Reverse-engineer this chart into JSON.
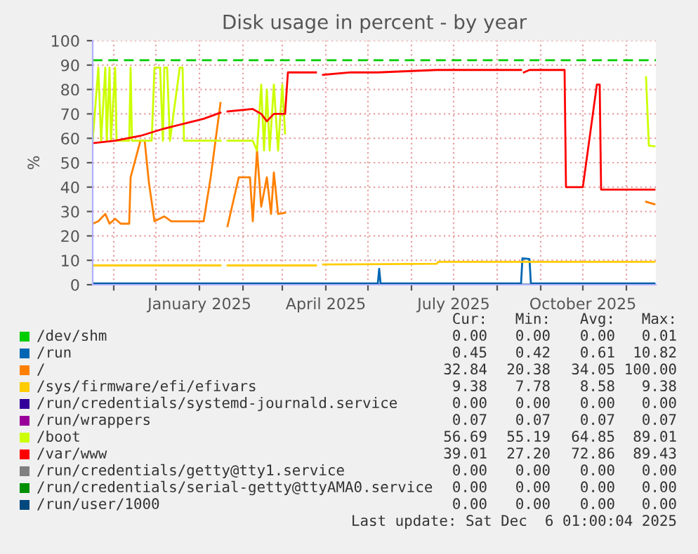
{
  "chart_data": {
    "type": "line",
    "title": "Disk usage in percent - by year",
    "ylabel": "%",
    "xlim": [
      "2024-10-17",
      "2025-11-22"
    ],
    "ylim": [
      0,
      100
    ],
    "yticks": [
      0,
      10,
      20,
      30,
      40,
      50,
      60,
      70,
      80,
      90,
      100
    ],
    "xticks": [
      {
        "value": "2024-11-01",
        "label": null
      },
      {
        "value": "2024-12-01",
        "label": null
      },
      {
        "value": "2025-01-01",
        "label": "January 2025"
      },
      {
        "value": "2025-02-01",
        "label": null
      },
      {
        "value": "2025-03-01",
        "label": null
      },
      {
        "value": "2025-04-01",
        "label": "April 2025"
      },
      {
        "value": "2025-05-01",
        "label": null
      },
      {
        "value": "2025-06-01",
        "label": null
      },
      {
        "value": "2025-07-01",
        "label": "July 2025"
      },
      {
        "value": "2025-08-01",
        "label": null
      },
      {
        "value": "2025-09-01",
        "label": null
      },
      {
        "value": "2025-10-01",
        "label": "October 2025"
      },
      {
        "value": "2025-11-01",
        "label": null
      }
    ],
    "grid": true,
    "legend": "bottom",
    "marker": "none",
    "line_style": "solid",
    "ref_lines": [
      {
        "axis": "y",
        "value": 92,
        "label": null,
        "color": "#00cc00",
        "line_style": "dashed"
      }
    ],
    "series": [
      {
        "name": "/dev/shm",
        "color": "#00cc00"
      },
      {
        "name": "/run",
        "color": "#0066b3",
        "x": [
          "2024-10-17",
          "2025-05-08",
          "2025-05-09",
          "2025-05-10",
          "2025-08-18",
          "2025-08-19",
          "2025-08-24",
          "2025-08-25",
          "2025-11-21"
        ],
        "values": [
          0.5,
          0.5,
          6.5,
          0.5,
          0.5,
          10.8,
          10.5,
          0.5,
          0.5
        ]
      },
      {
        "name": "/",
        "color": "#ff8000",
        "x": [
          "2024-10-17",
          "2024-10-21",
          "2024-10-26",
          "2024-10-29",
          "2024-11-02",
          "2024-11-06",
          "2024-11-12",
          "2024-11-13",
          "2024-11-20",
          "2024-11-23",
          "2024-11-26",
          "2024-11-30",
          "2024-12-07",
          "2024-12-12",
          "2025-01-04",
          "2025-01-09",
          "2025-01-16",
          "2025-01-18",
          "2025-01-21",
          "2025-01-29",
          "2025-02-06",
          "2025-02-08",
          "2025-02-11",
          "2025-02-14",
          "2025-02-18",
          "2025-02-21",
          "2025-02-23",
          "2025-02-26",
          "2025-03-03",
          "2025-03-04",
          "2025-11-15",
          "2025-11-21"
        ],
        "values": [
          25,
          26,
          29,
          25,
          27,
          25,
          25,
          44,
          59,
          59,
          42,
          26,
          28,
          26,
          26,
          44,
          74.5,
          null,
          24,
          44,
          44,
          26,
          55,
          32,
          44,
          29,
          46,
          29,
          29.5,
          null,
          34,
          33
        ]
      },
      {
        "name": "/sys/firmware/efi/efivars",
        "color": "#ffcc00",
        "x": [
          "2024-10-17",
          "2025-01-16",
          "2025-01-18",
          "2025-01-21",
          "2025-03-25",
          "2025-03-27",
          "2025-03-30",
          "2025-06-19",
          "2025-06-20",
          "2025-11-21"
        ],
        "values": [
          7.9,
          7.9,
          null,
          7.9,
          7.9,
          null,
          8.3,
          8.6,
          9.4,
          9.4
        ]
      },
      {
        "name": "/run/credentials/systemd-journald.service",
        "color": "#330099"
      },
      {
        "name": "/run/wrappers",
        "color": "#990099"
      },
      {
        "name": "/boot",
        "color": "#ccff00",
        "x": [
          "2024-10-17",
          "2024-10-21",
          "2024-10-23",
          "2024-10-26",
          "2024-10-27",
          "2024-10-29",
          "2024-10-30",
          "2024-11-02",
          "2024-11-03",
          "2024-11-12",
          "2024-11-13",
          "2024-11-14",
          "2024-11-28",
          "2024-11-30",
          "2024-12-04",
          "2024-12-06",
          "2024-12-07",
          "2024-12-09",
          "2024-12-11",
          "2024-12-18",
          "2024-12-20",
          "2024-12-21",
          "2025-01-16",
          "2025-01-18",
          "2025-01-21",
          "2025-02-08",
          "2025-02-11",
          "2025-02-14",
          "2025-02-16",
          "2025-02-18",
          "2025-02-20",
          "2025-02-23",
          "2025-02-26",
          "2025-03-01",
          "2025-03-03",
          "2025-03-04",
          "2025-11-15",
          "2025-11-17",
          "2025-11-21"
        ],
        "values": [
          59,
          89,
          59,
          89,
          59,
          89,
          59,
          89,
          59,
          59,
          89,
          59,
          59,
          89,
          89,
          59,
          89,
          89,
          59,
          89,
          89,
          59,
          59,
          null,
          59,
          59,
          55,
          82,
          55,
          80,
          55,
          82,
          55,
          82,
          62,
          null,
          85,
          57,
          56.7
        ]
      },
      {
        "name": "/var/www",
        "color": "#ff0000",
        "x": [
          "2024-10-17",
          "2024-11-02",
          "2024-11-20",
          "2024-12-07",
          "2024-12-21",
          "2025-01-04",
          "2025-01-16",
          "2025-01-18",
          "2025-01-21",
          "2025-02-08",
          "2025-02-14",
          "2025-02-18",
          "2025-02-23",
          "2025-03-03",
          "2025-03-05",
          "2025-03-25",
          "2025-03-27",
          "2025-03-30",
          "2025-04-19",
          "2025-05-08",
          "2025-06-19",
          "2025-08-18",
          "2025-08-19",
          "2025-08-20",
          "2025-08-24",
          "2025-09-18",
          "2025-09-19",
          "2025-10-01",
          "2025-10-11",
          "2025-10-13",
          "2025-10-14",
          "2025-11-21"
        ],
        "values": [
          58,
          59,
          61,
          64,
          66,
          68,
          70.5,
          null,
          71,
          72,
          70,
          67,
          70,
          70,
          87,
          87,
          null,
          86,
          87,
          87,
          88,
          88,
          null,
          87,
          88,
          88,
          40,
          40,
          82,
          82,
          39,
          39
        ]
      },
      {
        "name": "/run/credentials/getty@tty1.service",
        "color": "#808080"
      },
      {
        "name": "/run/credentials/serial-getty@ttyAMA0.service",
        "color": "#008f00"
      },
      {
        "name": "/run/user/1000",
        "color": "#00487d",
        "x": [
          "2024-10-17",
          "2025-11-21"
        ],
        "values": [
          0,
          0
        ]
      }
    ],
    "annotations": [
      "Cur:",
      "Min:",
      "Avg:",
      "Max:",
      "0.00",
      "0.00",
      "0.00",
      "0.01",
      "0.45",
      "0.42",
      "0.61",
      "10.82",
      "32.84",
      "20.38",
      "34.05",
      "100.00",
      "9.38",
      "7.78",
      "8.58",
      "9.38",
      "0.00",
      "0.00",
      "0.00",
      "0.00",
      "0.07",
      "0.07",
      "0.07",
      "0.07",
      "56.69",
      "55.19",
      "64.85",
      "89.01",
      "39.01",
      "27.20",
      "72.86",
      "89.43",
      "0.00",
      "0.00",
      "0.00",
      "0.00",
      "0.00",
      "0.00",
      "0.00",
      "0.00",
      "0.00",
      "0.00",
      "0.00",
      "0.00",
      "Last update: Sat Dec  6 01:00:04 2025"
    ]
  }
}
